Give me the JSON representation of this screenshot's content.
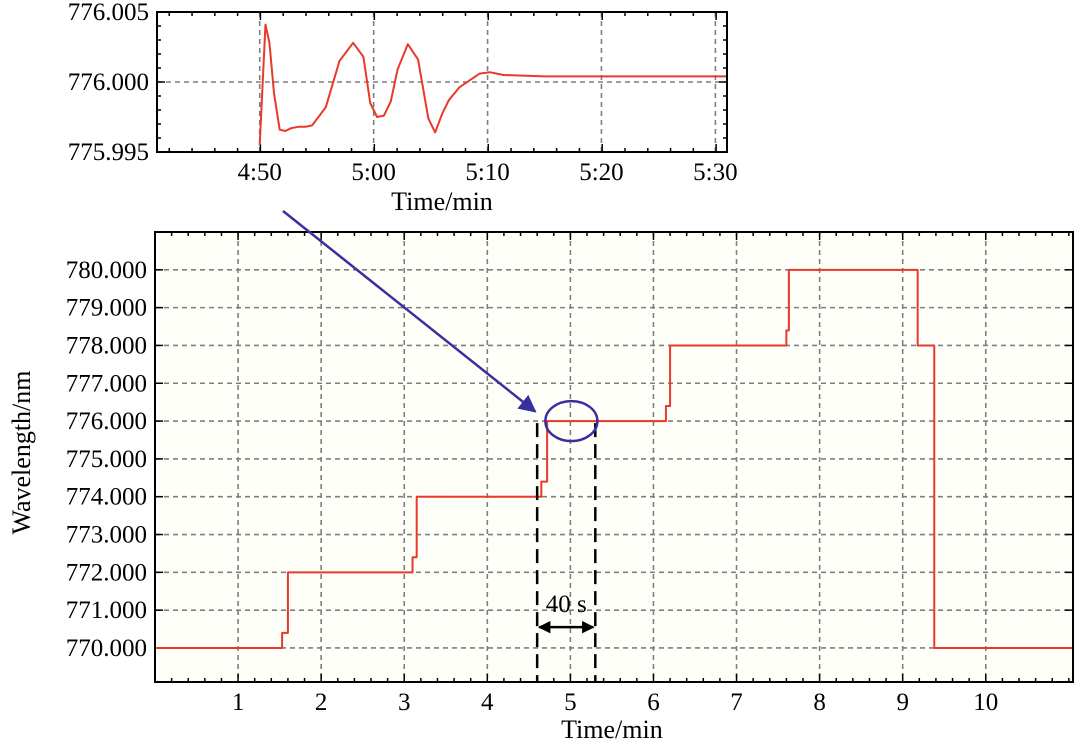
{
  "colors": {
    "series": "#e8392b",
    "annotation": "#3a2f9e",
    "grid": "#7f7f7f",
    "plot_bg": "#fffffa"
  },
  "chart_data": [
    {
      "id": "inset",
      "type": "line",
      "title": "",
      "xlabel": "Time/min",
      "ylabel": "",
      "xlim": [
        4.683,
        5.517
      ],
      "ylim": [
        775.995,
        776.005
      ],
      "x_ticks": [
        {
          "value": 4.8333,
          "label": "4:50"
        },
        {
          "value": 5.0,
          "label": "5:00"
        },
        {
          "value": 5.1667,
          "label": "5:10"
        },
        {
          "value": 5.3333,
          "label": "5:20"
        },
        {
          "value": 5.5,
          "label": "5:30"
        }
      ],
      "y_ticks": [
        {
          "value": 776.005,
          "label": "776.005"
        },
        {
          "value": 776.0,
          "label": "776.000"
        },
        {
          "value": 775.995,
          "label": "775.995"
        }
      ],
      "grid": true,
      "series": [
        {
          "x": [
            4.8333,
            4.8417,
            4.8475,
            4.8542,
            4.8625,
            4.8708,
            4.8792,
            4.89,
            4.9,
            4.91,
            4.93,
            4.95,
            4.97,
            4.985,
            4.995,
            5.005,
            5.015,
            5.025,
            5.035,
            5.05,
            5.065,
            5.08,
            5.09,
            5.1,
            5.11,
            5.125,
            5.14,
            5.155,
            5.17,
            5.19,
            5.25,
            5.35,
            5.45,
            5.517
          ],
          "y": [
            775.9955,
            776.0041,
            776.0028,
            775.9992,
            775.9966,
            775.9965,
            775.9967,
            775.9968,
            775.9968,
            775.9969,
            775.9982,
            776.0015,
            776.0028,
            776.0018,
            775.9985,
            775.9975,
            775.9976,
            775.9986,
            776.0009,
            776.0027,
            776.0016,
            775.9974,
            775.9964,
            775.9977,
            775.9987,
            775.9996,
            776.0001,
            776.0006,
            776.0007,
            776.0005,
            776.0004,
            776.0004,
            776.0004,
            776.0004
          ]
        }
      ]
    },
    {
      "id": "main",
      "type": "line",
      "title": "",
      "xlabel": "Time/min",
      "ylabel": "Wavelength/nm",
      "xlim": [
        0,
        11.05
      ],
      "ylim": [
        769.1,
        781.0
      ],
      "x_ticks": [
        {
          "value": 1,
          "label": "1"
        },
        {
          "value": 2,
          "label": "2"
        },
        {
          "value": 3,
          "label": "3"
        },
        {
          "value": 4,
          "label": "4"
        },
        {
          "value": 5,
          "label": "5"
        },
        {
          "value": 6,
          "label": "6"
        },
        {
          "value": 7,
          "label": "7"
        },
        {
          "value": 8,
          "label": "8"
        },
        {
          "value": 9,
          "label": "9"
        },
        {
          "value": 10,
          "label": "10"
        }
      ],
      "y_ticks": [
        {
          "value": 770,
          "label": "770.000"
        },
        {
          "value": 771,
          "label": "771.000"
        },
        {
          "value": 772,
          "label": "772.000"
        },
        {
          "value": 773,
          "label": "773.000"
        },
        {
          "value": 774,
          "label": "774.000"
        },
        {
          "value": 775,
          "label": "775.000"
        },
        {
          "value": 776,
          "label": "776.000"
        },
        {
          "value": 777,
          "label": "777.000"
        },
        {
          "value": 778,
          "label": "778.000"
        },
        {
          "value": 779,
          "label": "779.000"
        },
        {
          "value": 780,
          "label": "780.000"
        }
      ],
      "grid": true,
      "series": [
        {
          "x": [
            0.0,
            1.53,
            1.53,
            1.6,
            1.6,
            3.03,
            3.1,
            3.1,
            3.15,
            3.15,
            4.6,
            4.65,
            4.65,
            4.72,
            4.72,
            4.78,
            4.78,
            6.12,
            6.15,
            6.15,
            6.2,
            6.2,
            7.6,
            7.6,
            7.63,
            7.63,
            9.18,
            9.18,
            9.38,
            9.38,
            9.45,
            11.05
          ],
          "y": [
            770.0,
            770.0,
            770.4,
            770.4,
            772.0,
            772.0,
            772.0,
            772.4,
            772.4,
            774.0,
            774.0,
            774.0,
            774.4,
            774.4,
            776.0,
            776.0,
            776.0,
            776.0,
            776.0,
            776.4,
            776.4,
            778.0,
            778.0,
            778.4,
            778.4,
            780.0,
            780.0,
            778.0,
            778.0,
            770.0,
            770.0,
            770.0
          ]
        }
      ],
      "annotations": {
        "interval_label": "40 s",
        "interval_start_x": 4.6,
        "interval_end_x": 5.3,
        "ellipse_center": {
          "x": 5.0,
          "y": 776.0
        },
        "arrow_target": {
          "x": 4.6,
          "y": 776.2
        }
      }
    }
  ]
}
